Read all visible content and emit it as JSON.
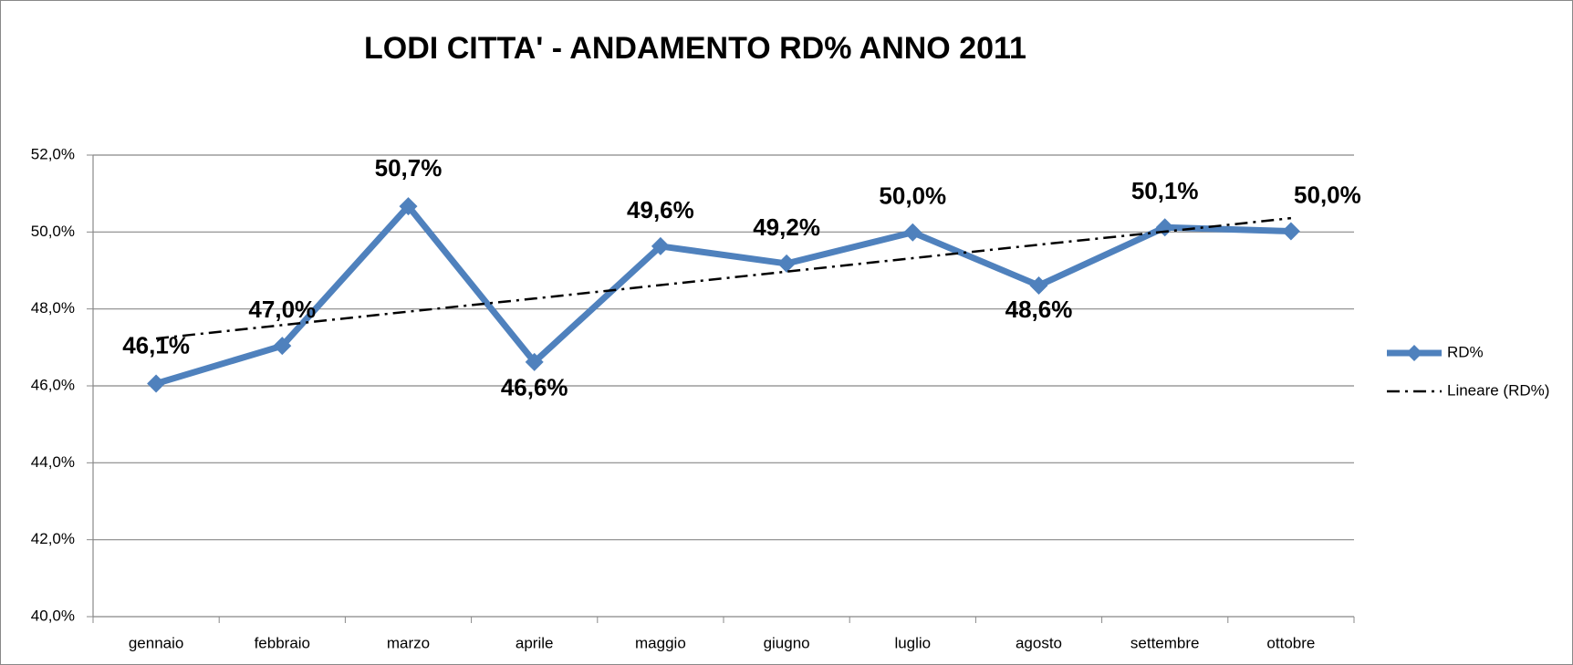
{
  "chart_data": {
    "type": "line",
    "title": "LODI CITTA' - ANDAMENTO RD% ANNO 2011",
    "categories": [
      "gennaio",
      "febbraio",
      "marzo",
      "aprile",
      "maggio",
      "giugno",
      "luglio",
      "agosto",
      "settembre",
      "ottobre"
    ],
    "series": [
      {
        "name": "RD%",
        "color": "#4f81bd",
        "values": [
          46.06,
          47.04,
          50.67,
          46.62,
          49.63,
          49.18,
          49.99,
          48.61,
          50.12,
          50.02
        ],
        "value_labels": [
          "46,1%",
          "47,0%",
          "50,7%",
          "46,6%",
          "49,6%",
          "49,2%",
          "50,0%",
          "48,6%",
          "50,1%",
          "50,0%"
        ]
      },
      {
        "name": "Lineare (RD%)",
        "color": "#000000",
        "dash": "dashdot",
        "values": [
          47.23,
          47.58,
          47.93,
          48.27,
          48.62,
          48.97,
          49.32,
          49.67,
          50.01,
          50.36
        ]
      }
    ],
    "ylim": [
      40,
      52
    ],
    "yticks": [
      {
        "value": 40,
        "label": "40,0%"
      },
      {
        "value": 42,
        "label": "42,0%"
      },
      {
        "value": 44,
        "label": "44,0%"
      },
      {
        "value": 46,
        "label": "46,0%"
      },
      {
        "value": 48,
        "label": "48,0%"
      },
      {
        "value": 50,
        "label": "50,0%"
      },
      {
        "value": 52,
        "label": "52,0%"
      }
    ],
    "grid": true,
    "legend": "right"
  }
}
